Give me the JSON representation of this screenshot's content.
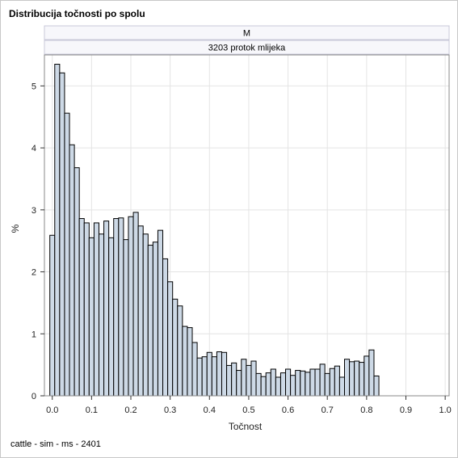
{
  "title": "Distribucija točnosti po spolu",
  "footnote": "cattle - sim - ms - 2401",
  "panel": {
    "row_label": "M",
    "col_label": "3203 protok mlijeka"
  },
  "colors": {
    "bar_fill": "#cdd9e6",
    "bar_stroke": "#000000",
    "grid": "#e4e4e4",
    "strip_fill": "#f7f7fb",
    "strip_border": "#c8c8d8"
  },
  "chart_data": {
    "type": "bar",
    "subtype": "histogram",
    "xlabel": "Točnost",
    "ylabel": "%",
    "xlim": [
      -0.02,
      1.01
    ],
    "ylim": [
      0,
      5.5
    ],
    "xticks": [
      "0.0",
      "0.1",
      "0.2",
      "0.3",
      "0.4",
      "0.5",
      "0.6",
      "0.7",
      "0.8",
      "0.9",
      "1.0"
    ],
    "yticks": [
      "0",
      "1",
      "2",
      "3",
      "4",
      "5"
    ],
    "grid": true,
    "bin_width": 0.0125,
    "bin_start": -0.00625,
    "values": [
      2.59,
      5.35,
      5.21,
      4.56,
      4.05,
      3.68,
      2.86,
      2.79,
      2.55,
      2.79,
      2.61,
      2.82,
      2.55,
      2.86,
      2.87,
      2.52,
      2.89,
      2.96,
      2.74,
      2.61,
      2.43,
      2.48,
      2.67,
      2.21,
      1.84,
      1.56,
      1.45,
      1.12,
      1.1,
      0.86,
      0.61,
      0.63,
      0.7,
      0.63,
      0.71,
      0.7,
      0.49,
      0.53,
      0.41,
      0.59,
      0.49,
      0.56,
      0.36,
      0.31,
      0.37,
      0.43,
      0.3,
      0.37,
      0.43,
      0.33,
      0.41,
      0.4,
      0.38,
      0.43,
      0.43,
      0.51,
      0.36,
      0.44,
      0.48,
      0.3,
      0.59,
      0.55,
      0.56,
      0.54,
      0.64,
      0.74,
      0.32
    ]
  }
}
